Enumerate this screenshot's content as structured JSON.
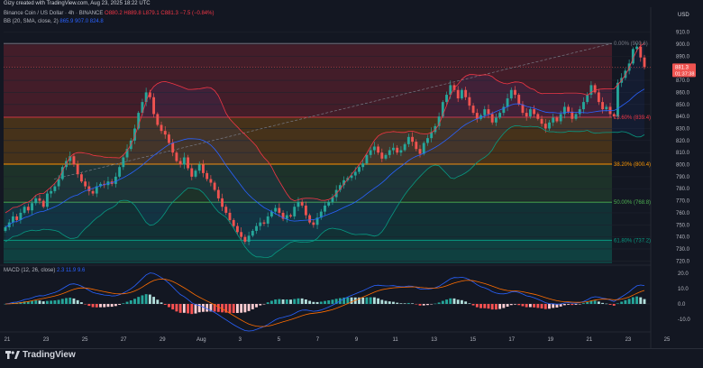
{
  "header": {
    "credit": "Gizy created with TradingView.com, Aug 23, 2025 18:22 UTC",
    "symbol_line": "Binance Coin / US Dollar · 4h · BINANCE",
    "ohlc": "O880.2  H889.8  L879.1  C881.3  −7.5 (−0.84%)",
    "bb_label": "BB (20, SMA, close, 2)",
    "bb_values": "865.9  907.0  824.8",
    "macd_label": "MACD (12, 26, close)",
    "macd_values": "2.3  11.9  9.6",
    "currency": "USD"
  },
  "footer": {
    "brand": "TradingView"
  },
  "colors": {
    "background": "#131722",
    "up": "#26a69a",
    "down": "#ef5350",
    "bb_upper": "#f23645",
    "bb_lower": "#089981",
    "bb_basis": "#2962ff",
    "macd_line": "#2962ff",
    "signal_line": "#ff6d00"
  },
  "chart_data": {
    "type": "candlestick",
    "price_axis": {
      "range": [
        718,
        912
      ],
      "ticks": [
        910,
        900,
        890,
        880,
        870,
        860,
        850,
        840,
        830,
        820,
        810,
        800,
        790,
        780,
        770,
        760,
        750,
        740,
        730,
        720
      ]
    },
    "current_price": "881.3",
    "countdown": "01:37:38",
    "x_labels": [
      "21",
      "23",
      "25",
      "27",
      "29",
      "Aug",
      "3",
      "5",
      "7",
      "9",
      "11",
      "13",
      "15",
      "17",
      "19",
      "21",
      "23",
      "25"
    ],
    "fib_levels": [
      {
        "label": "0.00% (900.6)",
        "price": 900.6,
        "color": "#787b86"
      },
      {
        "label": "23.60% (839.4)",
        "price": 839.4,
        "color": "#f23645"
      },
      {
        "label": "38.20% (800.4)",
        "price": 800.4,
        "color": "#ff9800"
      },
      {
        "label": "50.00% (768.8)",
        "price": 768.8,
        "color": "#4caf50"
      },
      {
        "label": "61.80% (737.2)",
        "price": 737.2,
        "color": "#089981"
      }
    ],
    "closes": [
      748,
      752,
      757,
      754,
      760,
      765,
      762,
      768,
      772,
      770,
      765,
      776,
      778,
      782,
      788,
      798,
      803,
      807,
      800,
      792,
      786,
      782,
      778,
      776,
      782,
      784,
      783,
      786,
      784,
      790,
      798,
      806,
      813,
      820,
      830,
      843,
      852,
      860,
      856,
      842,
      833,
      828,
      825,
      818,
      810,
      803,
      800,
      806,
      797,
      790,
      795,
      800,
      793,
      788,
      785,
      779,
      772,
      765,
      760,
      754,
      749,
      744,
      740,
      736,
      741,
      745,
      749,
      752,
      751,
      757,
      761,
      764,
      760,
      755,
      758,
      757,
      765,
      769,
      766,
      758,
      752,
      750,
      756,
      761,
      766,
      769,
      773,
      779,
      783,
      787,
      789,
      791,
      794,
      798,
      801,
      808,
      812,
      815,
      810,
      805,
      808,
      812,
      814,
      810,
      812,
      817,
      823,
      819,
      813,
      809,
      818,
      822,
      827,
      832,
      840,
      852,
      858,
      866,
      862,
      855,
      862,
      856,
      849,
      843,
      838,
      841,
      846,
      842,
      835,
      839,
      843,
      848,
      855,
      862,
      858,
      850,
      843,
      840,
      846,
      842,
      838,
      834,
      830,
      835,
      839,
      836,
      842,
      848,
      844,
      838,
      842,
      846,
      852,
      858,
      866,
      860,
      852,
      846,
      848,
      842,
      840,
      868,
      872,
      878,
      884,
      896,
      898,
      889,
      881
    ],
    "macd_axis": {
      "ticks": [
        20.0,
        10.0,
        0.0,
        -10.0
      ],
      "range": [
        -17,
        24
      ]
    }
  }
}
